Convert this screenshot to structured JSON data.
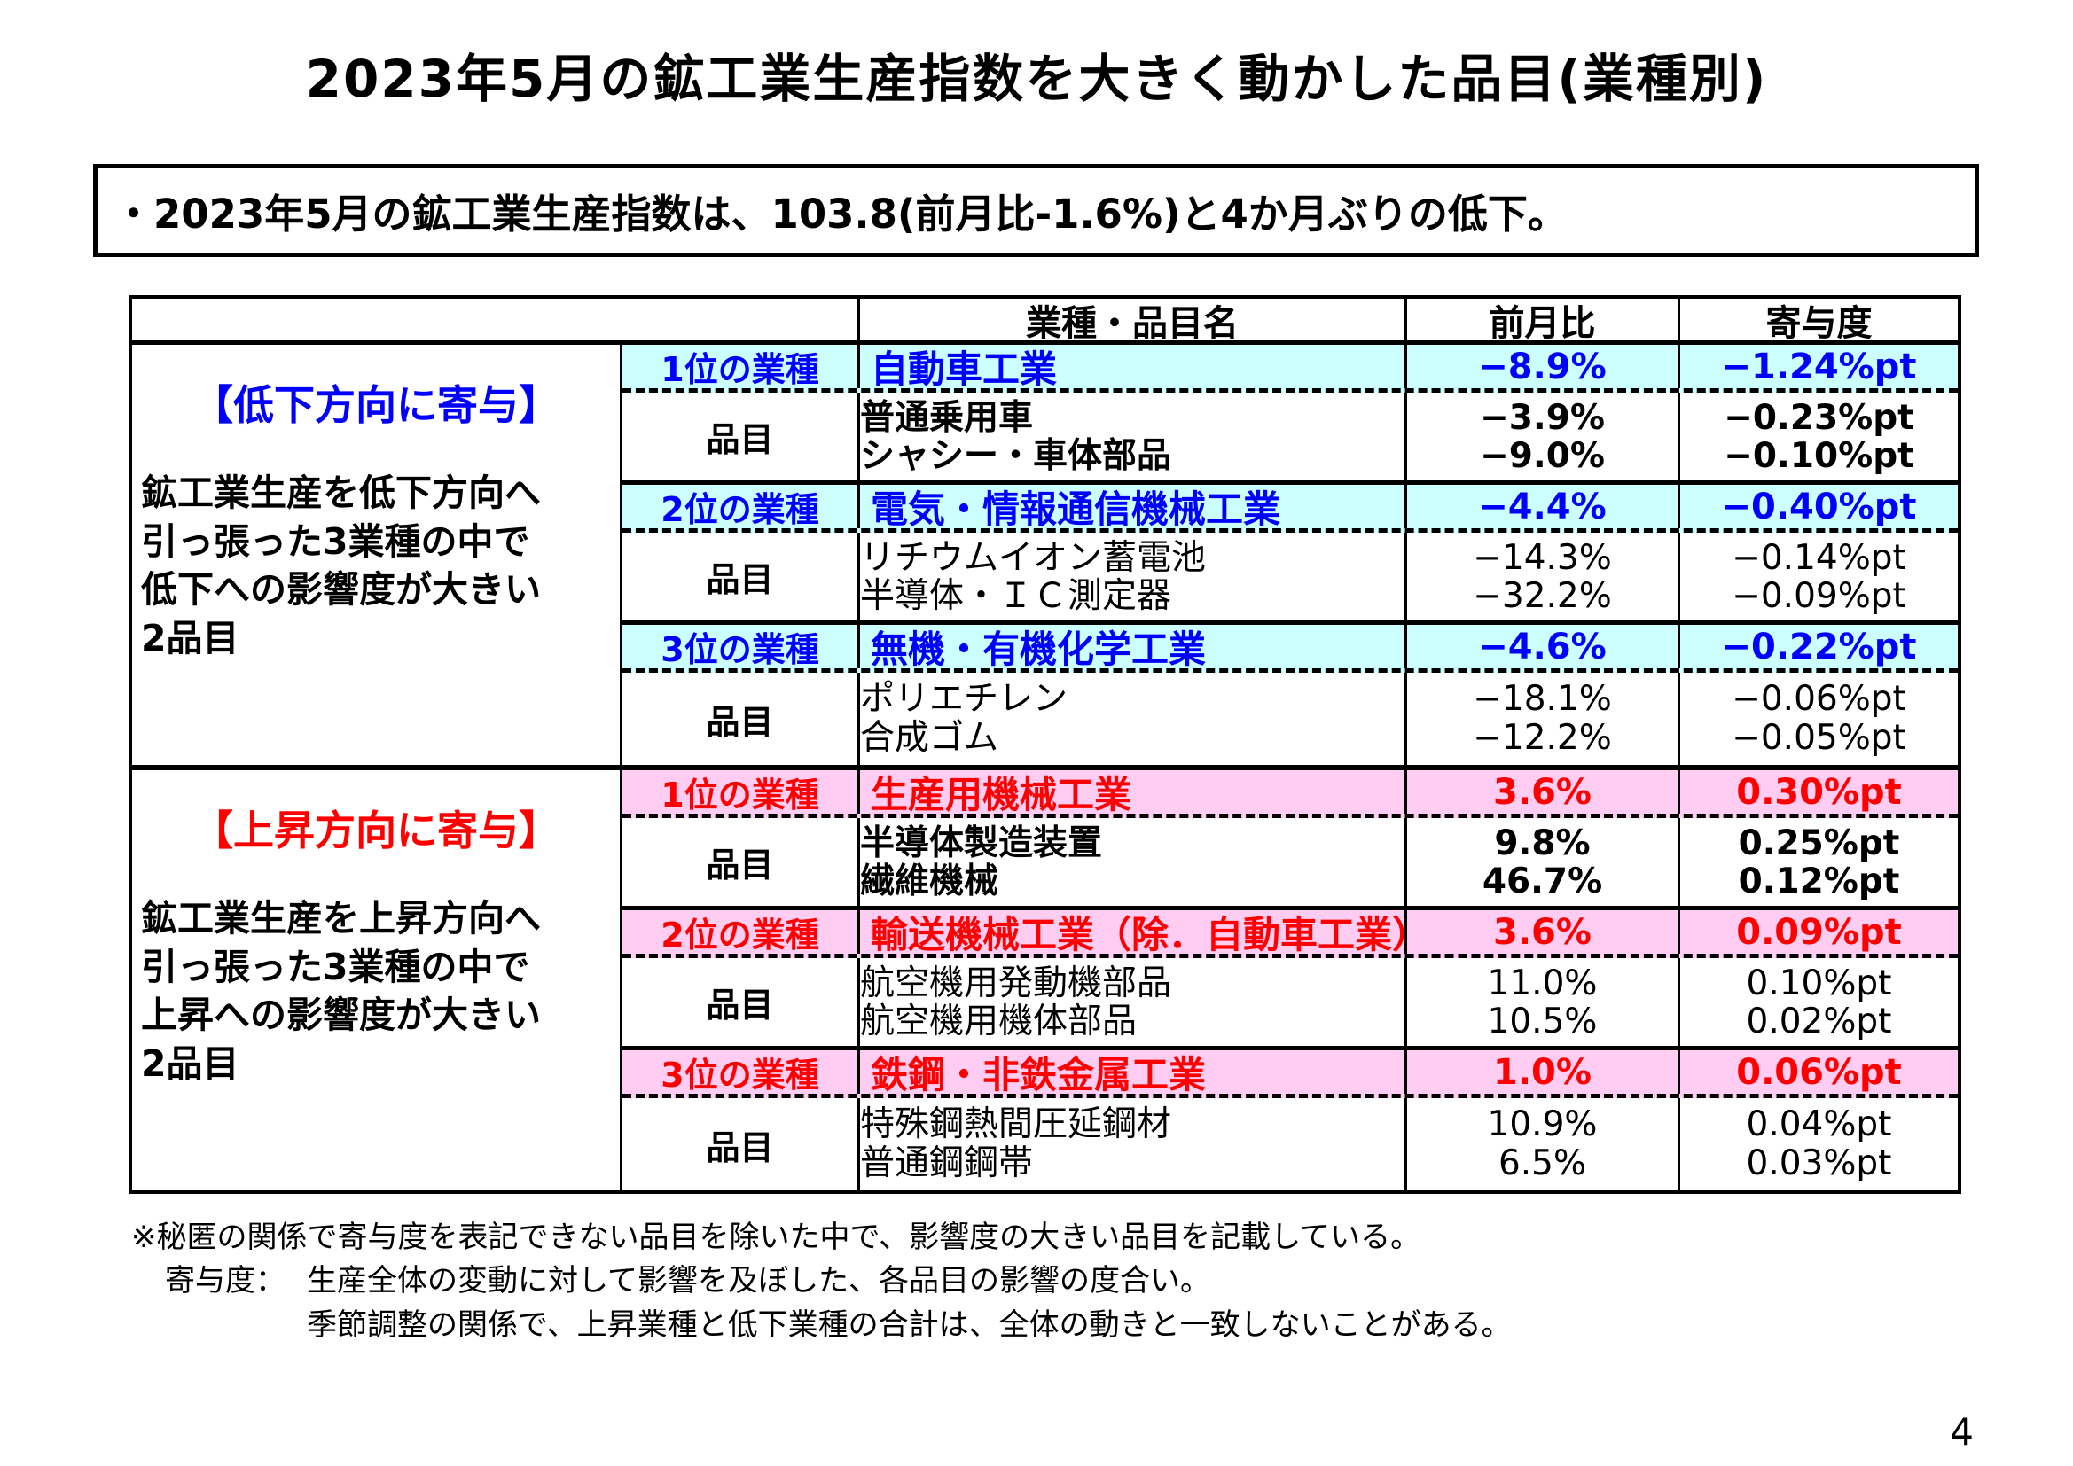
{
  "page": {
    "title": "2023年5月の鉱工業生産指数を大きく動かした品目(業種別)",
    "page_number": "4"
  },
  "intro": {
    "text": "・2023年5月の鉱工業生産指数は、103.8(前月比-1.6%)と4か月ぶりの低下。"
  },
  "table": {
    "headers": {
      "name_col": "業種・品目名",
      "mom_col": "前月比",
      "contribution_col": "寄与度"
    },
    "sections": [
      {
        "label": "【低下方向に寄与】",
        "description_lines": [
          "鉱工業生産を低下方向へ",
          "引っ張った3業種の中で",
          "低下への影響度が大きい",
          "2品目"
        ],
        "accent": "#0000FF",
        "bg": "#CCFFFF",
        "groups": [
          {
            "rank_label": "1位の業種",
            "industry": {
              "name": "自動車工業",
              "mom": "−8.9%",
              "contribution": "−1.24%pt"
            },
            "items_label": "品目",
            "items": [
              {
                "name": "普通乗用車",
                "mom": "−3.9%",
                "contribution": "−0.23%pt"
              },
              {
                "name": "シャシー・車体部品",
                "mom": "−9.0%",
                "contribution": "−0.10%pt"
              }
            ]
          },
          {
            "rank_label": "2位の業種",
            "industry": {
              "name": "電気・情報通信機械工業",
              "mom": "−4.4%",
              "contribution": "−0.40%pt"
            },
            "items_label": "品目",
            "items": [
              {
                "name": "リチウムイオン蓄電池",
                "mom": "−14.3%",
                "contribution": "−0.14%pt"
              },
              {
                "name": "半導体・ＩＣ測定器",
                "mom": "−32.2%",
                "contribution": "−0.09%pt"
              }
            ]
          },
          {
            "rank_label": "3位の業種",
            "industry": {
              "name": "無機・有機化学工業",
              "mom": "−4.6%",
              "contribution": "−0.22%pt"
            },
            "items_label": "品目",
            "items": [
              {
                "name": "ポリエチレン",
                "mom": "−18.1%",
                "contribution": "−0.06%pt"
              },
              {
                "name": "合成ゴム",
                "mom": "−12.2%",
                "contribution": "−0.05%pt"
              }
            ]
          }
        ]
      },
      {
        "label": "【上昇方向に寄与】",
        "description_lines": [
          "鉱工業生産を上昇方向へ",
          "引っ張った3業種の中で",
          "上昇への影響度が大きい",
          "2品目"
        ],
        "accent": "#FF0000",
        "bg": "#FFCCF2",
        "groups": [
          {
            "rank_label": "1位の業種",
            "industry": {
              "name": "生産用機械工業",
              "mom": "3.6%",
              "contribution": "0.30%pt"
            },
            "items_label": "品目",
            "items": [
              {
                "name": "半導体製造装置",
                "mom": "9.8%",
                "contribution": "0.25%pt"
              },
              {
                "name": "繊維機械",
                "mom": "46.7%",
                "contribution": "0.12%pt"
              }
            ]
          },
          {
            "rank_label": "2位の業種",
            "industry": {
              "name": "輸送機械工業（除．自動車工業）",
              "mom": "3.6%",
              "contribution": "0.09%pt"
            },
            "items_label": "品目",
            "items": [
              {
                "name": "航空機用発動機部品",
                "mom": "11.0%",
                "contribution": "0.10%pt"
              },
              {
                "name": "航空機用機体部品",
                "mom": "10.5%",
                "contribution": "0.02%pt"
              }
            ]
          },
          {
            "rank_label": "3位の業種",
            "industry": {
              "name": "鉄鋼・非鉄金属工業",
              "mom": "1.0%",
              "contribution": "0.06%pt"
            },
            "items_label": "品目",
            "items": [
              {
                "name": "特殊鋼熱間圧延鋼材",
                "mom": "10.9%",
                "contribution": "0.04%pt"
              },
              {
                "name": "普通鋼鋼帯",
                "mom": "6.5%",
                "contribution": "0.03%pt"
              }
            ]
          }
        ]
      }
    ]
  },
  "footnotes": {
    "note1": "※秘匿の関係で寄与度を表記できない品目を除いた中で、影響度の大きい品目を記載している。",
    "term_label": "寄与度：",
    "term_definition": "生産全体の変動に対して影響を及ぼした、各品目の影響の度合い。",
    "term_note": "季節調整の関係で、上昇業種と低下業種の合計は、全体の動きと一致しないことがある。"
  }
}
